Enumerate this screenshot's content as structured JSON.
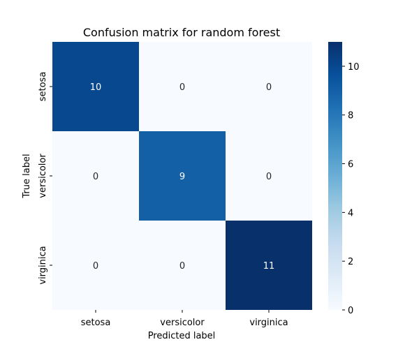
{
  "chart_data": {
    "type": "heatmap",
    "title": "Confusion matrix for random forest",
    "xlabel": "Predicted label",
    "ylabel": "True label",
    "x_categories": [
      "setosa",
      "versicolor",
      "virginica"
    ],
    "y_categories": [
      "setosa",
      "versicolor",
      "virginica"
    ],
    "values": [
      [
        10,
        0,
        0
      ],
      [
        0,
        9,
        0
      ],
      [
        0,
        0,
        11
      ]
    ],
    "colorbar": {
      "range": [
        0,
        11
      ],
      "ticks": [
        "0",
        "2",
        "4",
        "6",
        "8",
        "10"
      ]
    },
    "colormap": "Blues"
  }
}
